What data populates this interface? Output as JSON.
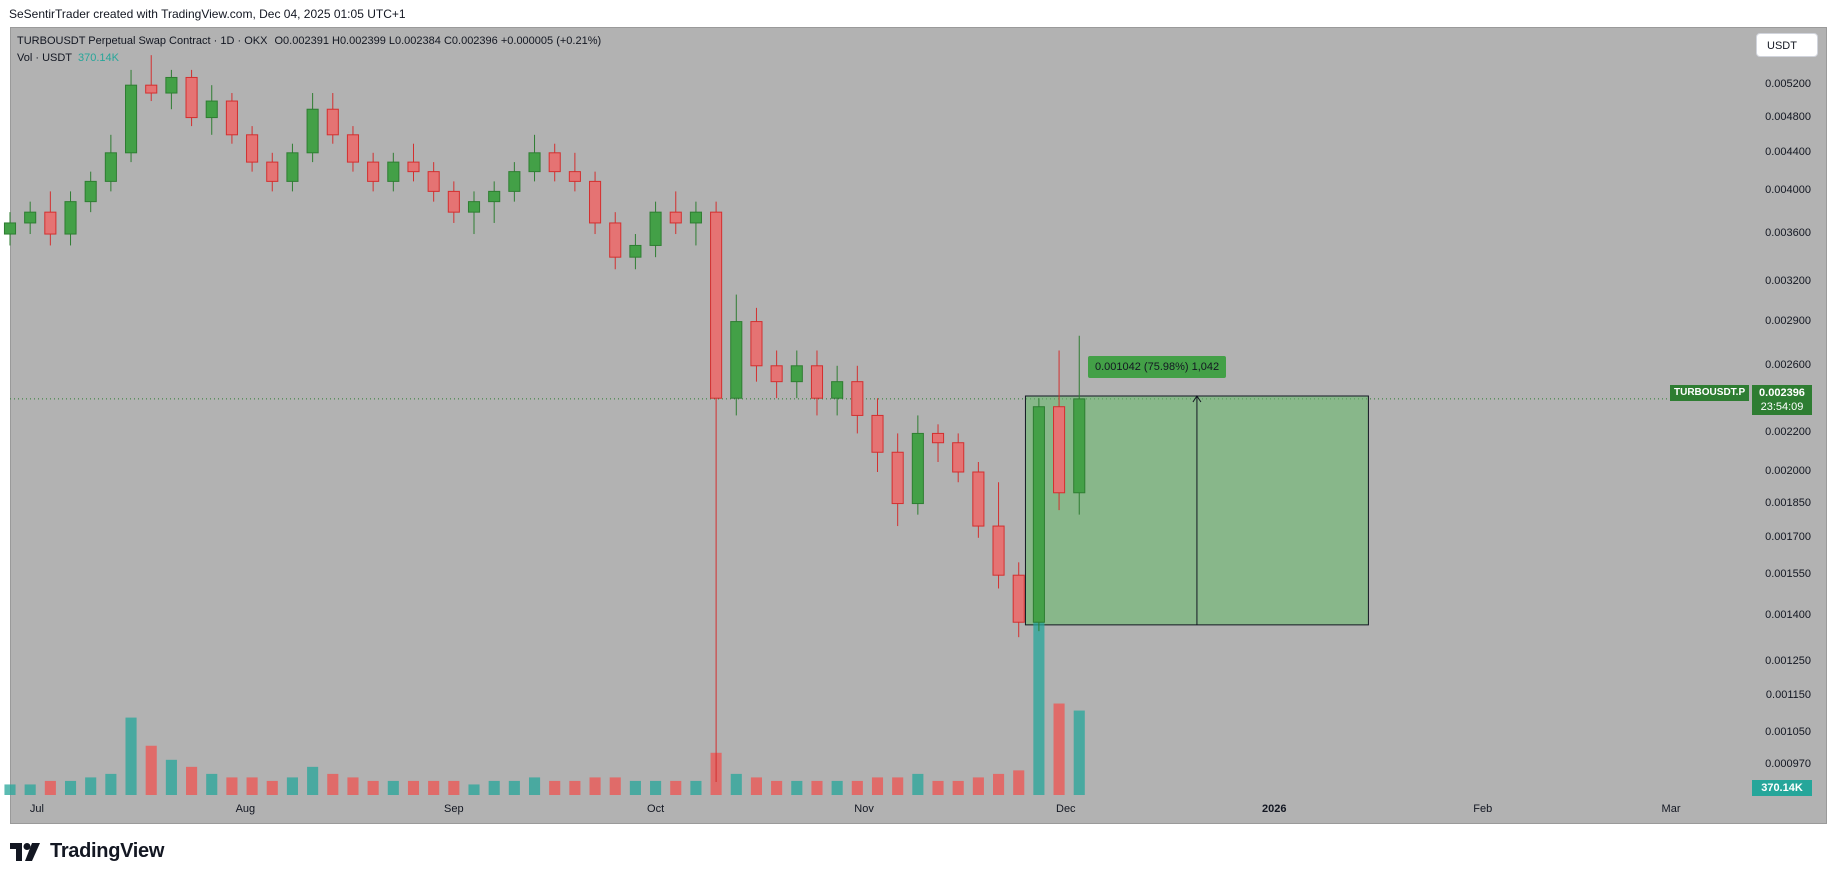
{
  "caption": "SeSentirTrader created with TradingView.com, Dec 04, 2025 01:05 UTC+1",
  "legend": {
    "symbol": "TURBOUSDT Perpetual Swap Contract · 1D · OKX",
    "open": "O0.002391",
    "high": "H0.002399",
    "low": "L0.002384",
    "close": "C0.002396",
    "change": "+0.000005 (+0.21%)",
    "volume_label": "Vol · USDT",
    "volume_value": "370.14K"
  },
  "currency_button": "USDT",
  "price_axis": [
    "0.005200",
    "0.004800",
    "0.004400",
    "0.004000",
    "0.003600",
    "0.003200",
    "0.002900",
    "0.002600",
    "0.002200",
    "0.002000",
    "0.001850",
    "0.001700",
    "0.001550",
    "0.001400",
    "0.001250",
    "0.001150",
    "0.001050",
    "0.000970"
  ],
  "time_axis": [
    {
      "label": "Jul",
      "bold": false
    },
    {
      "label": "Aug",
      "bold": false
    },
    {
      "label": "Sep",
      "bold": false
    },
    {
      "label": "Oct",
      "bold": false
    },
    {
      "label": "Nov",
      "bold": false
    },
    {
      "label": "Dec",
      "bold": false
    },
    {
      "label": "2026",
      "bold": true
    },
    {
      "label": "Feb",
      "bold": false
    },
    {
      "label": "Mar",
      "bold": false
    }
  ],
  "current_price": {
    "symbol_badge": "TURBOUSDT.P",
    "price": "0.002396",
    "countdown": "23:54:09"
  },
  "volume_badge": "370.14K",
  "measure_tool": {
    "label": "0.001042 (75.98%) 1,042",
    "from_price": 0.001371,
    "to_price": 0.002413
  },
  "footer": {
    "brand": "TradingView"
  },
  "colors": {
    "up": "#26a69a",
    "down": "#ef5350",
    "up_body": "#2e7d32",
    "down_body": "#d32f2f",
    "background": "#b2b2b2",
    "measure_fill": "#66bb6a"
  },
  "chart_data": {
    "type": "candlestick",
    "title": "TURBOUSDT Perpetual Swap Contract · 1D · OKX",
    "y_scale": "log",
    "ylim": [
      0.00093,
      0.0057
    ],
    "x_range": [
      "2025-06-27",
      "2026-03-12"
    ],
    "series": [
      {
        "date": "2025-06-27",
        "o": 0.0036,
        "h": 0.0038,
        "l": 0.0035,
        "c": 0.0037,
        "v": 3
      },
      {
        "date": "2025-06-30",
        "o": 0.0037,
        "h": 0.0039,
        "l": 0.0036,
        "c": 0.0038,
        "v": 3
      },
      {
        "date": "2025-07-03",
        "o": 0.0038,
        "h": 0.004,
        "l": 0.0035,
        "c": 0.0036,
        "v": 4
      },
      {
        "date": "2025-07-06",
        "o": 0.0036,
        "h": 0.004,
        "l": 0.0035,
        "c": 0.0039,
        "v": 4
      },
      {
        "date": "2025-07-09",
        "o": 0.0039,
        "h": 0.0042,
        "l": 0.0038,
        "c": 0.0041,
        "v": 5
      },
      {
        "date": "2025-07-12",
        "o": 0.0041,
        "h": 0.0046,
        "l": 0.004,
        "c": 0.0044,
        "v": 6
      },
      {
        "date": "2025-07-15",
        "o": 0.0044,
        "h": 0.0054,
        "l": 0.0043,
        "c": 0.0052,
        "v": 22
      },
      {
        "date": "2025-07-18",
        "o": 0.0052,
        "h": 0.0056,
        "l": 0.005,
        "c": 0.0051,
        "v": 14
      },
      {
        "date": "2025-07-21",
        "o": 0.0051,
        "h": 0.0054,
        "l": 0.0049,
        "c": 0.0053,
        "v": 10
      },
      {
        "date": "2025-07-24",
        "o": 0.0053,
        "h": 0.0054,
        "l": 0.0047,
        "c": 0.0048,
        "v": 8
      },
      {
        "date": "2025-07-27",
        "o": 0.0048,
        "h": 0.0052,
        "l": 0.0046,
        "c": 0.005,
        "v": 6
      },
      {
        "date": "2025-07-30",
        "o": 0.005,
        "h": 0.0051,
        "l": 0.0045,
        "c": 0.0046,
        "v": 5
      },
      {
        "date": "2025-08-02",
        "o": 0.0046,
        "h": 0.0047,
        "l": 0.0042,
        "c": 0.0043,
        "v": 5
      },
      {
        "date": "2025-08-05",
        "o": 0.0043,
        "h": 0.0044,
        "l": 0.004,
        "c": 0.0041,
        "v": 4
      },
      {
        "date": "2025-08-08",
        "o": 0.0041,
        "h": 0.0045,
        "l": 0.004,
        "c": 0.0044,
        "v": 5
      },
      {
        "date": "2025-08-11",
        "o": 0.0044,
        "h": 0.0051,
        "l": 0.0043,
        "c": 0.0049,
        "v": 8
      },
      {
        "date": "2025-08-14",
        "o": 0.0049,
        "h": 0.0051,
        "l": 0.0045,
        "c": 0.0046,
        "v": 6
      },
      {
        "date": "2025-08-17",
        "o": 0.0046,
        "h": 0.0047,
        "l": 0.0042,
        "c": 0.0043,
        "v": 5
      },
      {
        "date": "2025-08-20",
        "o": 0.0043,
        "h": 0.0044,
        "l": 0.004,
        "c": 0.0041,
        "v": 4
      },
      {
        "date": "2025-08-23",
        "o": 0.0041,
        "h": 0.0044,
        "l": 0.004,
        "c": 0.0043,
        "v": 4
      },
      {
        "date": "2025-08-26",
        "o": 0.0043,
        "h": 0.0045,
        "l": 0.0041,
        "c": 0.0042,
        "v": 4
      },
      {
        "date": "2025-08-29",
        "o": 0.0042,
        "h": 0.0043,
        "l": 0.0039,
        "c": 0.004,
        "v": 4
      },
      {
        "date": "2025-09-01",
        "o": 0.004,
        "h": 0.0041,
        "l": 0.0037,
        "c": 0.0038,
        "v": 4
      },
      {
        "date": "2025-09-04",
        "o": 0.0038,
        "h": 0.004,
        "l": 0.0036,
        "c": 0.0039,
        "v": 3
      },
      {
        "date": "2025-09-07",
        "o": 0.0039,
        "h": 0.0041,
        "l": 0.0037,
        "c": 0.004,
        "v": 4
      },
      {
        "date": "2025-09-10",
        "o": 0.004,
        "h": 0.0043,
        "l": 0.0039,
        "c": 0.0042,
        "v": 4
      },
      {
        "date": "2025-09-13",
        "o": 0.0042,
        "h": 0.0046,
        "l": 0.0041,
        "c": 0.0044,
        "v": 5
      },
      {
        "date": "2025-09-16",
        "o": 0.0044,
        "h": 0.0045,
        "l": 0.0041,
        "c": 0.0042,
        "v": 4
      },
      {
        "date": "2025-09-19",
        "o": 0.0042,
        "h": 0.0044,
        "l": 0.004,
        "c": 0.0041,
        "v": 4
      },
      {
        "date": "2025-09-22",
        "o": 0.0041,
        "h": 0.0042,
        "l": 0.0036,
        "c": 0.0037,
        "v": 5
      },
      {
        "date": "2025-09-25",
        "o": 0.0037,
        "h": 0.0038,
        "l": 0.0033,
        "c": 0.0034,
        "v": 5
      },
      {
        "date": "2025-09-28",
        "o": 0.0034,
        "h": 0.0036,
        "l": 0.0033,
        "c": 0.0035,
        "v": 4
      },
      {
        "date": "2025-10-01",
        "o": 0.0035,
        "h": 0.0039,
        "l": 0.0034,
        "c": 0.0038,
        "v": 4
      },
      {
        "date": "2025-10-04",
        "o": 0.0038,
        "h": 0.004,
        "l": 0.0036,
        "c": 0.0037,
        "v": 4
      },
      {
        "date": "2025-10-07",
        "o": 0.0037,
        "h": 0.0039,
        "l": 0.0035,
        "c": 0.0038,
        "v": 4
      },
      {
        "date": "2025-10-10",
        "o": 0.0038,
        "h": 0.0039,
        "l": 0.00093,
        "c": 0.0024,
        "v": 12
      },
      {
        "date": "2025-10-13",
        "o": 0.0024,
        "h": 0.0031,
        "l": 0.0023,
        "c": 0.0029,
        "v": 6
      },
      {
        "date": "2025-10-16",
        "o": 0.0029,
        "h": 0.003,
        "l": 0.0025,
        "c": 0.0026,
        "v": 5
      },
      {
        "date": "2025-10-19",
        "o": 0.0026,
        "h": 0.0027,
        "l": 0.0024,
        "c": 0.0025,
        "v": 4
      },
      {
        "date": "2025-10-22",
        "o": 0.0025,
        "h": 0.0027,
        "l": 0.0024,
        "c": 0.0026,
        "v": 4
      },
      {
        "date": "2025-10-25",
        "o": 0.0026,
        "h": 0.0027,
        "l": 0.0023,
        "c": 0.0024,
        "v": 4
      },
      {
        "date": "2025-10-28",
        "o": 0.0024,
        "h": 0.0026,
        "l": 0.0023,
        "c": 0.0025,
        "v": 4
      },
      {
        "date": "2025-10-31",
        "o": 0.0025,
        "h": 0.0026,
        "l": 0.0022,
        "c": 0.0023,
        "v": 4
      },
      {
        "date": "2025-11-03",
        "o": 0.0023,
        "h": 0.0024,
        "l": 0.002,
        "c": 0.0021,
        "v": 5
      },
      {
        "date": "2025-11-06",
        "o": 0.0021,
        "h": 0.0022,
        "l": 0.00175,
        "c": 0.00185,
        "v": 5
      },
      {
        "date": "2025-11-09",
        "o": 0.00185,
        "h": 0.0023,
        "l": 0.0018,
        "c": 0.0022,
        "v": 6
      },
      {
        "date": "2025-11-12",
        "o": 0.0022,
        "h": 0.00225,
        "l": 0.00205,
        "c": 0.00215,
        "v": 4
      },
      {
        "date": "2025-11-15",
        "o": 0.00215,
        "h": 0.0022,
        "l": 0.00195,
        "c": 0.002,
        "v": 4
      },
      {
        "date": "2025-11-18",
        "o": 0.002,
        "h": 0.00205,
        "l": 0.0017,
        "c": 0.00175,
        "v": 5
      },
      {
        "date": "2025-11-21",
        "o": 0.00175,
        "h": 0.00195,
        "l": 0.0015,
        "c": 0.00155,
        "v": 6
      },
      {
        "date": "2025-11-24",
        "o": 0.00155,
        "h": 0.0016,
        "l": 0.00133,
        "c": 0.00138,
        "v": 7
      },
      {
        "date": "2025-11-27",
        "o": 0.00138,
        "h": 0.0024,
        "l": 0.00135,
        "c": 0.00235,
        "v": 54
      },
      {
        "date": "2025-11-30",
        "o": 0.00235,
        "h": 0.0027,
        "l": 0.00182,
        "c": 0.0019,
        "v": 26
      },
      {
        "date": "2025-12-03",
        "o": 0.0019,
        "h": 0.0028,
        "l": 0.0018,
        "c": 0.002396,
        "v": 24
      }
    ]
  }
}
